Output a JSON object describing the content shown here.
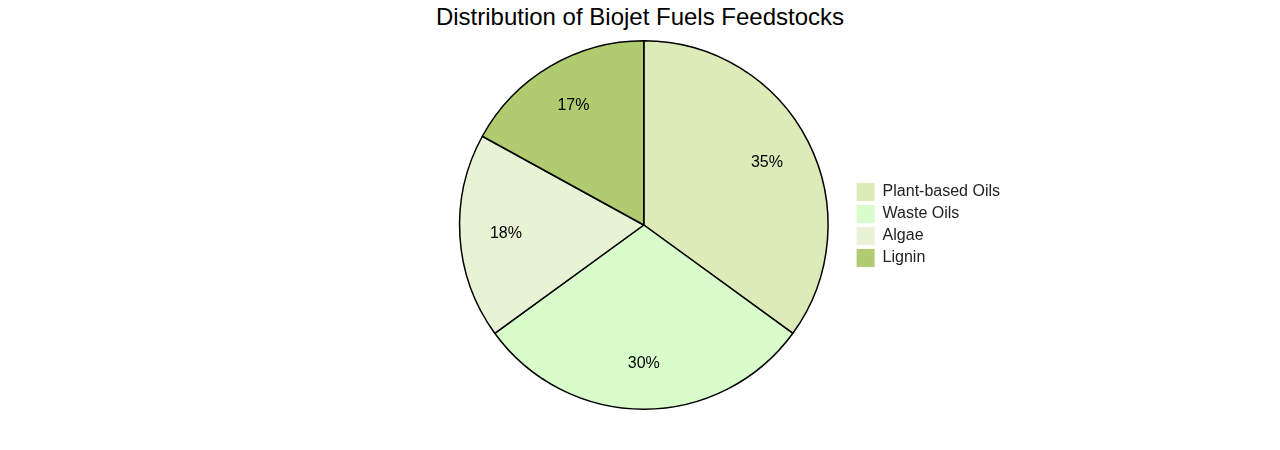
{
  "chart_data": {
    "type": "pie",
    "title": "Distribution of Biojet Fuels Feedstocks",
    "categories": [
      "Plant-based Oils",
      "Waste Oils",
      "Algae",
      "Lignin"
    ],
    "values": [
      35,
      30,
      18,
      17
    ],
    "value_labels": [
      "35%",
      "30%",
      "18%",
      "17%"
    ],
    "colors": [
      "#dcebb8",
      "#d9fdca",
      "#e8f2d4",
      "#b0cb70"
    ],
    "data_labels": true,
    "legend": "right"
  }
}
